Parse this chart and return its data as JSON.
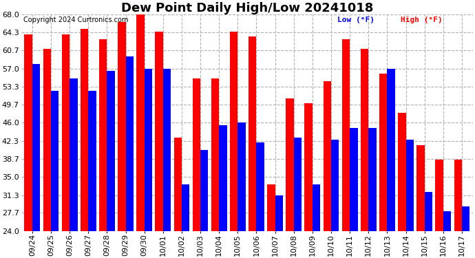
{
  "title": "Dew Point Daily High/Low 20241018",
  "copyright": "Copyright 2024 Curtronics.com",
  "legend_low": "Low (°F)",
  "legend_high": "High (°F)",
  "dates": [
    "09/24",
    "09/25",
    "09/26",
    "09/27",
    "09/28",
    "09/29",
    "09/30",
    "10/01",
    "10/02",
    "10/03",
    "10/04",
    "10/05",
    "10/06",
    "10/07",
    "10/08",
    "10/09",
    "10/10",
    "10/11",
    "10/12",
    "10/13",
    "10/14",
    "10/15",
    "10/16",
    "10/17"
  ],
  "high_values": [
    64.0,
    61.0,
    64.0,
    65.0,
    63.0,
    66.5,
    68.0,
    64.5,
    43.0,
    55.0,
    55.0,
    64.5,
    63.5,
    33.5,
    51.0,
    50.0,
    54.5,
    63.0,
    61.0,
    56.0,
    48.0,
    41.5,
    38.5,
    38.5
  ],
  "low_values": [
    58.0,
    52.5,
    55.0,
    52.5,
    56.5,
    59.5,
    57.0,
    57.0,
    33.5,
    40.5,
    45.5,
    46.0,
    42.0,
    31.3,
    43.0,
    33.5,
    42.5,
    45.0,
    45.0,
    57.0,
    42.5,
    32.0,
    28.0,
    29.0
  ],
  "bar_color_high": "#ff0000",
  "bar_color_low": "#0000ff",
  "background_color": "#ffffff",
  "grid_color": "#b0b0b0",
  "title_fontsize": 13,
  "tick_fontsize": 8,
  "ymin": 24.0,
  "ymax": 68.0,
  "yticks": [
    24.0,
    27.7,
    31.3,
    35.0,
    38.7,
    42.3,
    46.0,
    49.7,
    53.3,
    57.0,
    60.7,
    64.3,
    68.0
  ]
}
